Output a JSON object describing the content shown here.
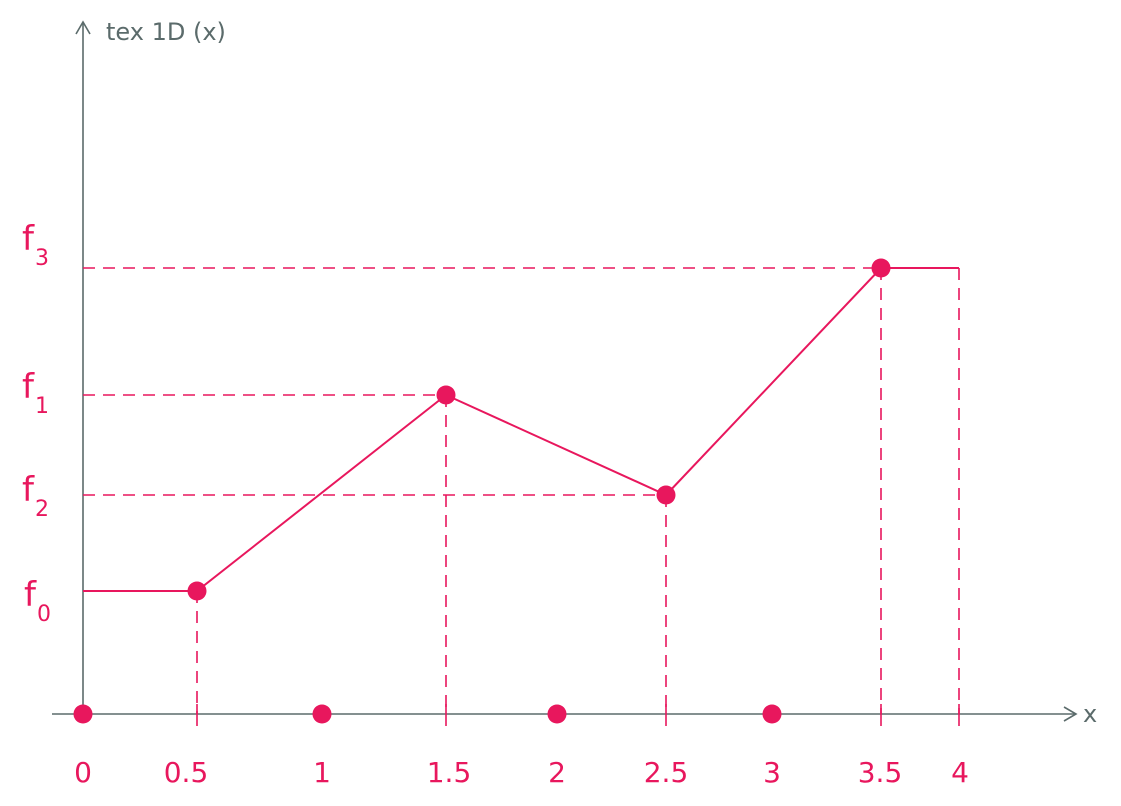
{
  "axes": {
    "y_label": "tex 1D (x)",
    "x_label": "x"
  },
  "x_tick_labels": [
    "0",
    "0.5",
    "1",
    "1.5",
    "2",
    "2.5",
    "3",
    "3.5",
    "4"
  ],
  "levels": [
    {
      "main": "f",
      "sub": "3",
      "value": 3
    },
    {
      "main": "f",
      "sub": "1",
      "value": 1
    },
    {
      "main": "f",
      "sub": "2",
      "value": 2
    },
    {
      "main": "f",
      "sub": "0",
      "value": 0
    }
  ],
  "chart_data": {
    "type": "line",
    "xlim": [
      0,
      4
    ],
    "x_ticks": [
      0,
      0.5,
      1,
      1.5,
      2,
      2.5,
      3,
      3.5,
      4
    ],
    "line": [
      {
        "x": 0,
        "f": 0
      },
      {
        "x": 0.5,
        "f": 0
      },
      {
        "x": 1.5,
        "f": 1
      },
      {
        "x": 2.5,
        "f": 2
      },
      {
        "x": 3.5,
        "f": 3
      },
      {
        "x": 4,
        "f": 3
      }
    ],
    "texel_samples": [
      {
        "x": 0.5,
        "f": 0
      },
      {
        "x": 1.5,
        "f": 1
      },
      {
        "x": 2.5,
        "f": 2
      },
      {
        "x": 3.5,
        "f": 3
      }
    ],
    "axis_points": [
      0,
      1,
      2,
      3
    ],
    "colors": {
      "accent": "#e8175d",
      "axis": "#5b6b6b"
    }
  }
}
